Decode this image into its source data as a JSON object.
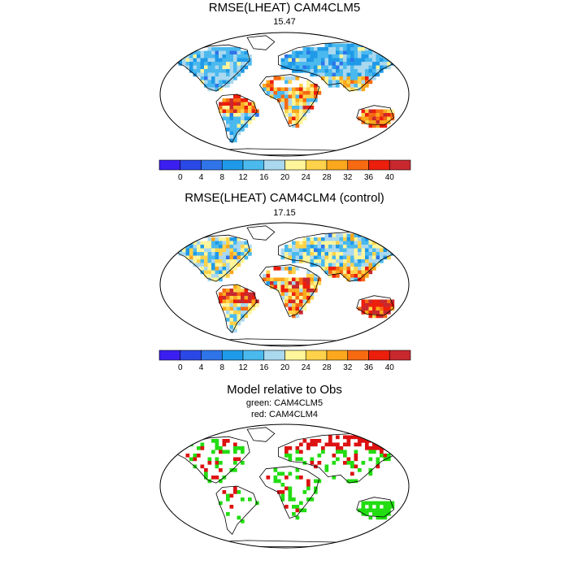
{
  "panels": [
    {
      "title": "RMSE(LHEAT) CAM4CLM5",
      "value": "15.47"
    },
    {
      "title": "RMSE(LHEAT) CAM4CLM4 (control)",
      "value": "17.15"
    },
    {
      "title": "Model relative to Obs",
      "legend_lines": [
        "green: CAM4CLM5",
        "red: CAM4CLM4"
      ]
    }
  ],
  "colorbar": {
    "colors": [
      "#3a1ff0",
      "#2a48e6",
      "#2f74e9",
      "#1f9ae8",
      "#4ab9ee",
      "#a9d8ef",
      "#fff59a",
      "#fed24a",
      "#fba81e",
      "#f76a12",
      "#ec1e0c",
      "#c8282e"
    ],
    "tick_labels": [
      "0",
      "4",
      "8",
      "12",
      "16",
      "20",
      "24",
      "28",
      "32",
      "36",
      "40"
    ]
  },
  "colors": {
    "green": "#22dd11",
    "red": "#dd1111",
    "coast": "#000000"
  }
}
